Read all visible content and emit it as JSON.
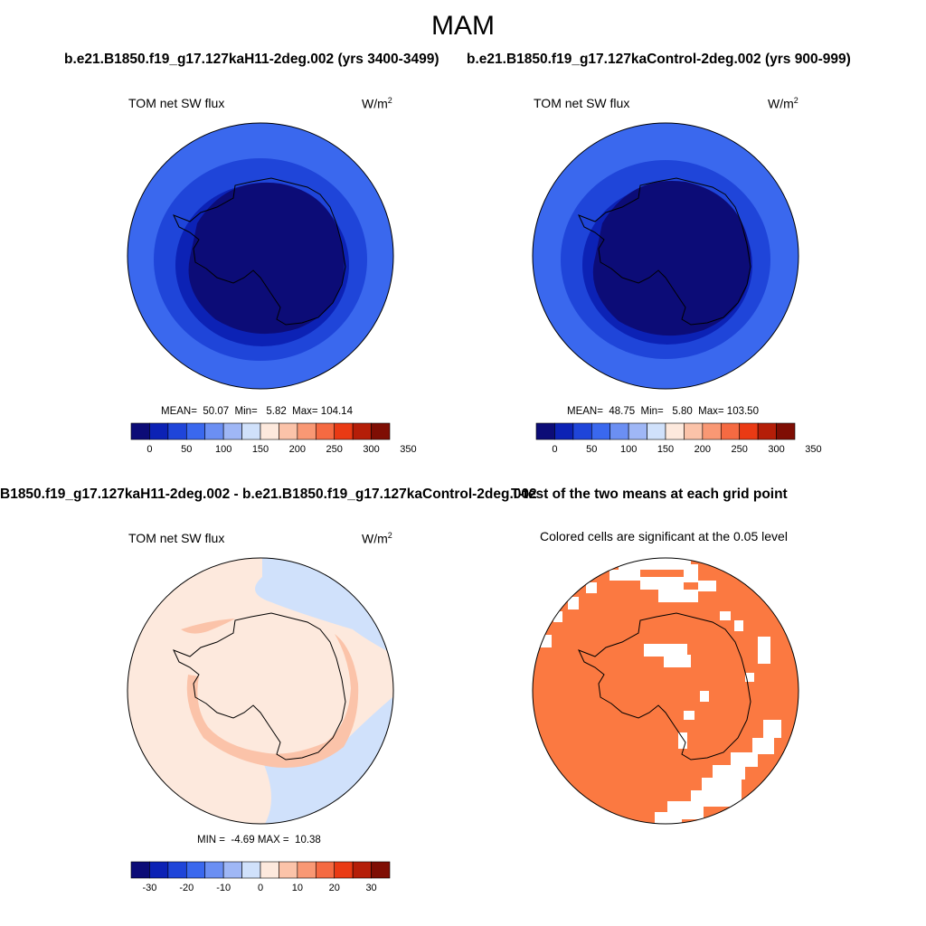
{
  "title": "MAM",
  "panels": {
    "p1": {
      "run_title": "b.e21.B1850.f19_g17.127kaH11-2deg.002 (yrs 3400-3499)",
      "variable": "TOM net SW flux",
      "unit_base": "W/m",
      "unit_exp": "2",
      "mean_label": "MEAN=",
      "mean": "50.07",
      "min_label": "Min=",
      "min": "5.82",
      "max_label": "Max=",
      "max": "104.14",
      "ticks": [
        "0",
        "50",
        "100",
        "150",
        "200",
        "250",
        "300",
        "350"
      ]
    },
    "p2": {
      "run_title": "b.e21.B1850.f19_g17.127kaControl-2deg.002 (yrs 900-999)",
      "variable": "TOM net SW flux",
      "unit_base": "W/m",
      "unit_exp": "2",
      "mean_label": "MEAN=",
      "mean": "48.75",
      "min_label": "Min=",
      "min": "5.80",
      "max_label": "Max=",
      "max": "103.50",
      "ticks": [
        "0",
        "50",
        "100",
        "150",
        "200",
        "250",
        "300",
        "350"
      ]
    },
    "p3": {
      "run_title": "B1850.f19_g17.127kaH11-2deg.002 - b.e21.B1850.f19_g17.127kaControl-2deg.002",
      "variable": "TOM net SW flux",
      "unit_base": "W/m",
      "unit_exp": "2",
      "min_label": "MIN =",
      "min": "-4.69",
      "max_label": "MAX =",
      "max": "10.38",
      "ticks": [
        "-30",
        "-20",
        "-10",
        "0",
        "10",
        "20",
        "30"
      ]
    },
    "p4": {
      "run_title": "T-test of the two means at each grid point",
      "subtitle": "Colored cells are significant at the 0.05 level"
    }
  },
  "colors": {
    "abs_colorbar": [
      "#0c0c77",
      "#0c22b5",
      "#1f45d9",
      "#3a68ee",
      "#6b8ff3",
      "#9fb7f6",
      "#d0e1fb",
      "#fde9dd",
      "#fbc3a9",
      "#f99874",
      "#f56a42",
      "#ea3a14",
      "#b51e08",
      "#7f0e04"
    ],
    "diff_colorbar": [
      "#0c0c77",
      "#0c22b5",
      "#1f45d9",
      "#3a68ee",
      "#6b8ff3",
      "#9fb7f6",
      "#d0e1fb",
      "#fde9dd",
      "#fbc3a9",
      "#f99874",
      "#f56a42",
      "#ea3a14",
      "#b51e08",
      "#7f0e04"
    ],
    "ttest_significant": "#fb7941"
  }
}
